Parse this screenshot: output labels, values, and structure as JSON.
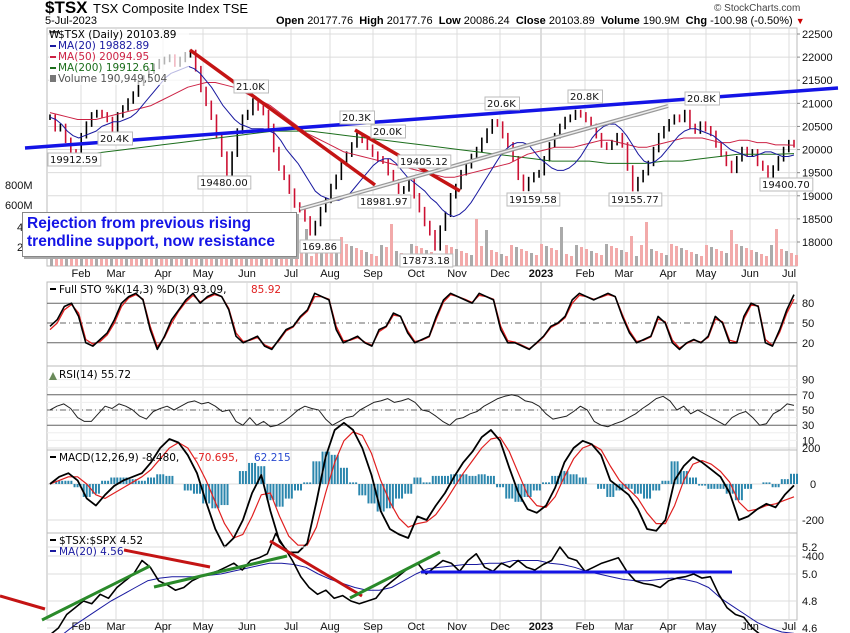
{
  "header": {
    "symbol": "$TSX",
    "name": "TSX Composite Index  TSE",
    "date": "5-Jul-2023",
    "copyright": "© StockCharts.com",
    "open_label": "Open",
    "open": "20177.76",
    "high_label": "High",
    "high": "20177.76",
    "low_label": "Low",
    "low": "20086.24",
    "close_label": "Close",
    "close": "20103.89",
    "volume_label": "Volume",
    "volume": "190.9M",
    "chg_label": "Chg",
    "chg": "-100.98 (-0.50%)",
    "chg_arrow": "▼"
  },
  "colors": {
    "up": "#000000",
    "down": "#cc1133",
    "ma20": "#1a1aa0",
    "ma50": "#cc2244",
    "ma200": "#1c6e1c",
    "trend_blue": "#1414e6",
    "trend_red": "#c41414",
    "trend_green": "#2a8a2a",
    "macd_hist": "#2b86ad",
    "grid": "#dcdcdc"
  },
  "callout": {
    "line1": "Rejection from previous rising",
    "line2": "trendline support, now resistance"
  },
  "chart_data": [
    {
      "type": "line",
      "title": "$TSX (Daily) 20103.89",
      "legend": [
        "$TSX (Daily) 20103.89",
        "MA(20) 19882.89",
        "MA(50) 20094.95",
        "MA(200) 19912.61",
        "Volume 190,949,504"
      ],
      "yticks": [
        22500,
        22000,
        21500,
        21000,
        20500,
        20000,
        19500,
        19000,
        18500,
        18000
      ],
      "volume_ticks": [
        "800M",
        "600M",
        "4",
        "2"
      ],
      "ylim": [
        17600,
        22700
      ],
      "xticks": [
        "Feb",
        "Mar",
        "Apr",
        "May",
        "Jun",
        "Jul",
        "Aug",
        "Sep",
        "Oct",
        "Nov",
        "Dec",
        "2023",
        "Feb",
        "Mar",
        "Apr",
        "May",
        "Jun",
        "Jul"
      ],
      "close": [
        20700,
        20450,
        20500,
        20200,
        19950,
        19912,
        20300,
        20550,
        20750,
        20800,
        20750,
        20650,
        20400,
        20750,
        20900,
        21050,
        21200,
        21450,
        21550,
        21700,
        21800,
        21900,
        21950,
        22000,
        21850,
        21950,
        22050,
        22100,
        21750,
        21300,
        21000,
        20700,
        20300,
        19900,
        19480,
        19900,
        20400,
        20700,
        20800,
        21050,
        20900,
        20800,
        20500,
        20000,
        19600,
        19400,
        19100,
        18800,
        18700,
        18500,
        18200,
        18400,
        18700,
        18900,
        19200,
        19400,
        19700,
        19900,
        20100,
        20300,
        20200,
        20050,
        19900,
        19800,
        19750,
        19500,
        19300,
        19100,
        19150,
        19300,
        19000,
        18700,
        18400,
        18200,
        17873,
        18300,
        18600,
        19000,
        19200,
        19500,
        19650,
        19850,
        20000,
        20200,
        20400,
        20600,
        20550,
        20300,
        20100,
        19800,
        19400,
        19159,
        19350,
        19450,
        19500,
        19800,
        20100,
        20300,
        20500,
        20650,
        20700,
        20800,
        20750,
        20650,
        20500,
        20300,
        20100,
        20050,
        20150,
        20300,
        20100,
        19600,
        19155,
        19350,
        19500,
        19700,
        20000,
        20300,
        20450,
        20600,
        20700,
        20650,
        20800,
        20500,
        20400,
        20550,
        20450,
        20350,
        20100,
        19900,
        19700,
        19550,
        19800,
        20000,
        19900,
        19950,
        19700,
        19600,
        19400,
        19600,
        19800,
        20000,
        20150,
        20104
      ],
      "ma20": [
        20700,
        20650,
        20550,
        20400,
        20300,
        20250,
        20300,
        20350,
        20400,
        20500,
        20550,
        20600,
        20600,
        20650,
        20700,
        20800,
        20950,
        21100,
        21250,
        21400,
        21550,
        21650,
        21700,
        21750,
        21800,
        21750,
        21650,
        21500,
        21350,
        21150,
        20950,
        20800,
        20650,
        20550,
        20500,
        20450,
        20450,
        20450,
        20400,
        20350,
        20200,
        20000,
        19850,
        19700,
        19500,
        19300,
        19100,
        19000,
        18950,
        18900,
        18900,
        18950,
        19050,
        19200,
        19350,
        19500,
        19650,
        19750,
        19800,
        19800,
        19700,
        19550,
        19400,
        19300,
        19200,
        19100,
        18950,
        18850,
        18700,
        18600,
        18550,
        18600,
        18700,
        18850,
        19050,
        19250,
        19450,
        19650,
        19850,
        20000,
        20100,
        20150,
        20150,
        20100,
        19950,
        19800,
        19700,
        19600,
        19550,
        19550,
        19600,
        19700,
        19850,
        20050,
        20250,
        20400,
        20500,
        20550,
        20550,
        20450,
        20300,
        20100,
        19900,
        19750,
        19700,
        19750,
        19850,
        20000,
        20150,
        20300,
        20400,
        20450,
        20450,
        20400,
        20350,
        20300,
        20200,
        20100,
        20000,
        19950,
        19900,
        19850,
        19850,
        19900,
        19950,
        19950,
        19900,
        19850,
        19850,
        19883
      ],
      "ma50": [
        20800,
        20750,
        20700,
        20650,
        20650,
        20650,
        20700,
        20750,
        20800,
        20850,
        20900,
        20950,
        21050,
        21150,
        21250,
        21350,
        21400,
        21450,
        21450,
        21400,
        21350,
        21250,
        21150,
        21050,
        20950,
        20800,
        20650,
        20500,
        20350,
        20250,
        20150,
        20050,
        19950,
        19900,
        19850,
        19800,
        19750,
        19700,
        19650,
        19600,
        19550,
        19500,
        19450,
        19400,
        19400,
        19450,
        19500,
        19550,
        19600,
        19650,
        19700,
        19800,
        19900,
        19950,
        20000,
        20050,
        20050,
        20050,
        20100,
        20150,
        20200,
        20200,
        20150,
        20100,
        20050,
        20050,
        20100,
        20150,
        20200,
        20250,
        20250,
        20250,
        20200,
        20150,
        20150,
        20200,
        20200,
        20150,
        20150,
        20100,
        20100,
        20095
      ],
      "ma200": [
        19800,
        19850,
        19900,
        19950,
        20000,
        20050,
        20100,
        20150,
        20200,
        20250,
        20300,
        20350,
        20400,
        20400,
        20400,
        20350,
        20300,
        20250,
        20200,
        20150,
        20100,
        20050,
        20000,
        19950,
        19900,
        19850,
        19800,
        19750,
        19750,
        19750,
        19700,
        19700,
        19700,
        19750,
        19750,
        19800,
        19850,
        19900,
        19900,
        19900,
        19913
      ]
    },
    {
      "type": "line",
      "title": "Full STO %K(14,3) %D(3) 93.09, 85.92",
      "legend": [
        "Full STO %K(14,3) %D(3) 93.09",
        "85.92"
      ],
      "yticks": [
        80,
        50,
        20
      ],
      "ylim": [
        0,
        100
      ],
      "k": [
        45,
        55,
        75,
        80,
        60,
        20,
        15,
        25,
        35,
        55,
        80,
        90,
        95,
        85,
        40,
        10,
        30,
        55,
        70,
        85,
        95,
        80,
        90,
        95,
        90,
        70,
        30,
        20,
        25,
        30,
        15,
        10,
        25,
        40,
        45,
        60,
        70,
        95,
        90,
        85,
        40,
        20,
        25,
        30,
        20,
        15,
        40,
        45,
        65,
        60,
        35,
        20,
        25,
        30,
        60,
        85,
        95,
        90,
        85,
        80,
        95,
        90,
        85,
        40,
        20,
        20,
        15,
        10,
        20,
        30,
        45,
        50,
        60,
        85,
        95,
        90,
        85,
        90,
        95,
        90,
        60,
        35,
        20,
        25,
        30,
        60,
        50,
        20,
        10,
        20,
        25,
        20,
        30,
        60,
        50,
        20,
        20,
        60,
        80,
        75,
        20,
        15,
        40,
        70,
        93
      ],
      "d": [
        40,
        50,
        70,
        78,
        65,
        25,
        18,
        22,
        32,
        50,
        75,
        88,
        93,
        86,
        45,
        14,
        28,
        50,
        68,
        82,
        92,
        82,
        88,
        93,
        90,
        72,
        35,
        22,
        24,
        28,
        17,
        12,
        23,
        38,
        44,
        58,
        68,
        90,
        90,
        86,
        45,
        23,
        24,
        28,
        21,
        16,
        37,
        44,
        62,
        60,
        38,
        22,
        24,
        29,
        56,
        82,
        93,
        90,
        86,
        81,
        92,
        90,
        86,
        45,
        23,
        21,
        16,
        11,
        19,
        29,
        43,
        49,
        58,
        80,
        92,
        90,
        86,
        89,
        93,
        90,
        63,
        38,
        22,
        24,
        29,
        56,
        52,
        24,
        12,
        19,
        24,
        21,
        28,
        56,
        52,
        24,
        21,
        56,
        77,
        76,
        25,
        16,
        36,
        65,
        86
      ]
    },
    {
      "type": "line",
      "title": "RSI(14) 55.72",
      "legend": [
        "RSI(14) 55.72"
      ],
      "yticks": [
        90,
        70,
        50,
        30,
        10
      ],
      "ylim": [
        0,
        100
      ],
      "values": [
        50,
        55,
        58,
        52,
        40,
        35,
        35,
        45,
        55,
        52,
        58,
        55,
        50,
        42,
        38,
        48,
        52,
        55,
        50,
        55,
        60,
        62,
        58,
        60,
        55,
        48,
        50,
        35,
        30,
        40,
        30,
        35,
        28,
        30,
        35,
        42,
        50,
        55,
        52,
        50,
        38,
        30,
        35,
        40,
        42,
        50,
        55,
        60,
        62,
        65,
        60,
        62,
        65,
        60,
        50,
        48,
        42,
        35,
        30,
        38,
        40,
        45,
        48,
        55,
        60,
        65,
        68,
        70,
        68,
        62,
        60,
        55,
        45,
        38,
        40,
        42,
        48,
        55,
        50,
        35,
        30,
        28,
        32,
        35,
        40,
        45,
        52,
        58,
        65,
        68,
        62,
        50,
        55,
        45,
        50,
        45,
        40,
        35,
        30,
        40,
        45,
        48,
        40,
        30,
        32,
        45,
        50,
        58,
        56
      ]
    },
    {
      "type": "line",
      "title": "MACD(12,26,9) -8.480, -70.695, 62.215",
      "legend": [
        "MACD(12,26,9) -8.480",
        "-70.695",
        "62.215"
      ],
      "yticks": [
        200,
        0,
        -200,
        -400
      ],
      "ylim": [
        -550,
        350
      ],
      "macd": [
        0,
        40,
        60,
        20,
        -80,
        -120,
        -60,
        -10,
        20,
        40,
        60,
        120,
        200,
        250,
        230,
        160,
        60,
        -100,
        -250,
        -350,
        -300,
        -200,
        -50,
        50,
        -150,
        -320,
        -380,
        -380,
        -330,
        -100,
        150,
        300,
        340,
        300,
        200,
        50,
        -150,
        -250,
        -280,
        -300,
        -180,
        -200,
        -120,
        -50,
        40,
        120,
        180,
        260,
        300,
        240,
        90,
        -50,
        -140,
        -160,
        -120,
        -20,
        120,
        200,
        240,
        220,
        160,
        20,
        -20,
        -60,
        -140,
        -250,
        -260,
        -200,
        20,
        100,
        150,
        120,
        80,
        40,
        -50,
        -200,
        -180,
        -140,
        -110,
        -130,
        -60,
        -8
      ],
      "signal": [
        0,
        20,
        40,
        40,
        0,
        -60,
        -80,
        -50,
        -20,
        10,
        40,
        80,
        140,
        200,
        230,
        200,
        120,
        20,
        -100,
        -220,
        -300,
        -280,
        -180,
        -60,
        -50,
        -180,
        -290,
        -340,
        -340,
        -240,
        -50,
        120,
        240,
        290,
        270,
        170,
        20,
        -100,
        -190,
        -240,
        -220,
        -210,
        -170,
        -100,
        -20,
        60,
        130,
        200,
        250,
        260,
        180,
        60,
        -60,
        -120,
        -130,
        -70,
        40,
        140,
        200,
        220,
        190,
        100,
        20,
        -30,
        -80,
        -160,
        -220,
        -220,
        -120,
        20,
        110,
        130,
        110,
        70,
        10,
        -100,
        -150,
        -140,
        -120,
        -110,
        -90,
        -71
      ]
    },
    {
      "type": "line",
      "title": "$TSX:$SPX 4.52",
      "legend": [
        "$TSX:$SPX 4.52",
        "MA(20) 4.56"
      ],
      "yticks": [
        5.2,
        5.0,
        4.8,
        4.6
      ],
      "ylim": [
        4.4,
        5.35
      ],
      "ratio": [
        4.55,
        4.6,
        4.7,
        4.75,
        4.8,
        4.78,
        4.85,
        4.82,
        4.9,
        4.95,
        5.0,
        5.1,
        5.05,
        4.95,
        4.92,
        4.88,
        4.9,
        4.95,
        4.98,
        5.0,
        5.02,
        5.05,
        5.08,
        5.03,
        5.1,
        5.12,
        5.15,
        5.3,
        5.2,
        5.1,
        4.98,
        4.9,
        4.85,
        4.88,
        4.82,
        4.84,
        4.8,
        4.78,
        4.8,
        4.82,
        4.9,
        4.95,
        5.0,
        5.05,
        5.08,
        5.0,
        5.05,
        5.1,
        5.08,
        5.02,
        5.1,
        5.15,
        5.05,
        5.02,
        5.08,
        5.05,
        5.1,
        5.05,
        5.03,
        5.07,
        5.1,
        5.2,
        5.12,
        5.1,
        5.02,
        5.05,
        5.08,
        5.1,
        5.12,
        5.02,
        4.95,
        4.93,
        4.92,
        4.9,
        4.95,
        4.97,
        4.98,
        5.0,
        4.97,
        4.98,
        4.85,
        4.75,
        4.7,
        4.68,
        4.6,
        4.55,
        4.53,
        4.5,
        4.53,
        4.52
      ],
      "ma20": [
        4.5,
        4.55,
        4.62,
        4.68,
        4.74,
        4.8,
        4.85,
        4.9,
        4.95,
        4.97,
        4.98,
        4.98,
        4.98,
        4.99,
        5.0,
        5.02,
        5.04,
        5.06,
        5.08,
        5.08,
        5.07,
        5.05,
        5.0,
        4.96,
        4.93,
        4.9,
        4.88,
        4.88,
        4.9,
        4.95,
        5.0,
        5.04,
        5.05,
        5.06,
        5.07,
        5.07,
        5.08,
        5.08,
        5.1,
        5.1,
        5.1,
        5.08,
        5.07,
        5.05,
        5.02,
        5.0,
        4.98,
        4.96,
        4.95,
        4.95,
        4.96,
        4.97,
        4.96,
        4.94,
        4.9,
        4.82,
        4.76,
        4.7,
        4.64,
        4.6,
        4.57,
        4.56
      ]
    }
  ],
  "annotations": {
    "price_labels": [
      "19912.59",
      "20.4K",
      "21.0K",
      "19480.00",
      "20.3K",
      "20.0K",
      "19405.12",
      "18981.97",
      "169.86",
      "17873.18",
      "20.6K",
      "19159.58",
      "20.8K",
      "19155.77",
      "20.8K",
      "19400.70"
    ]
  }
}
